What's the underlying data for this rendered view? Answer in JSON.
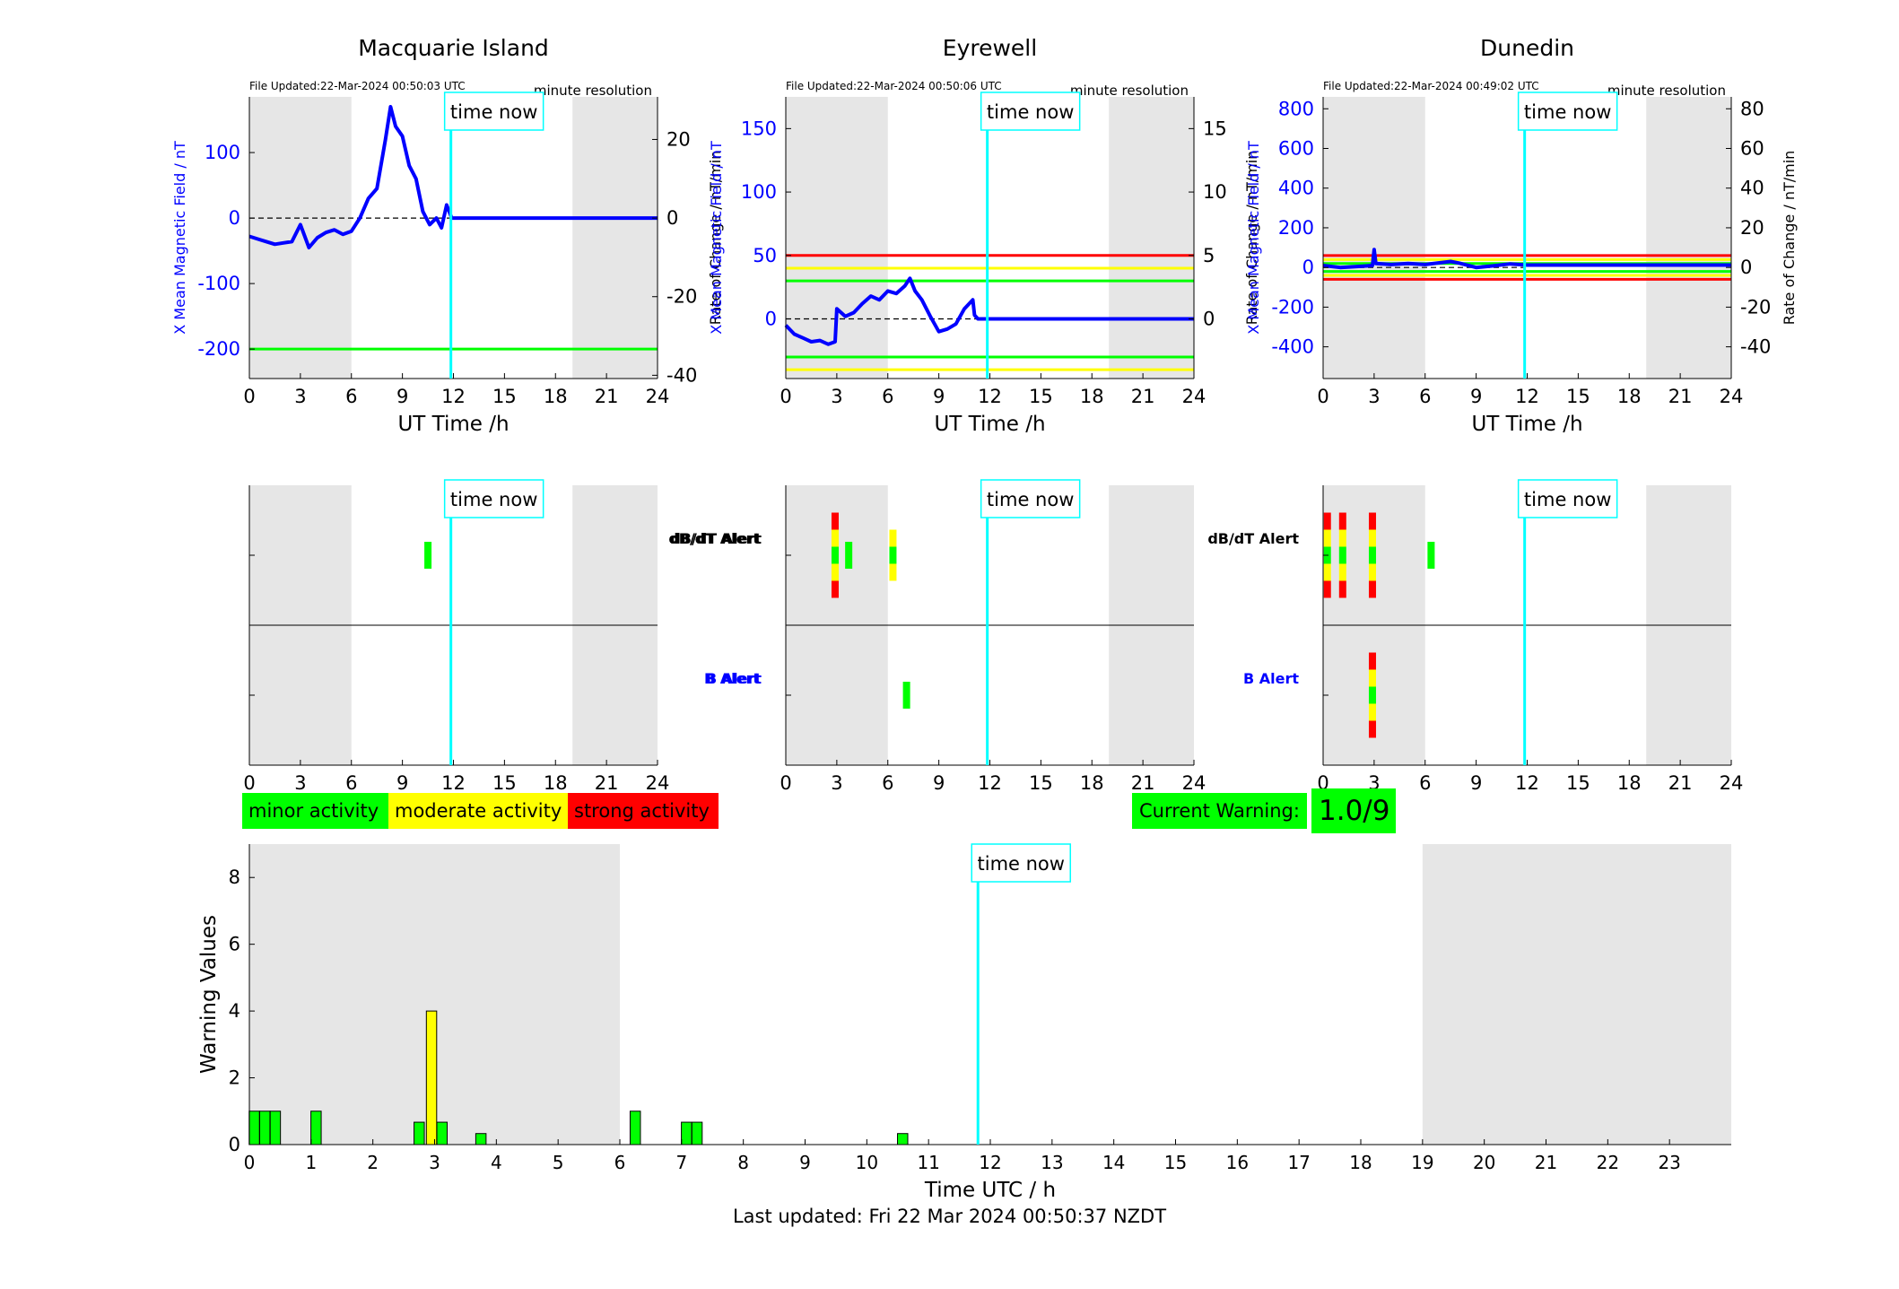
{
  "footer": {
    "last_updated": "Last updated: Fri 22 Mar 2024 00:50:37 NZDT"
  },
  "legend": {
    "minor": "minor activity",
    "moderate": "moderate activity",
    "strong": "strong activity"
  },
  "current_warning": {
    "label": "Current Warning:",
    "value": "1.0/9"
  },
  "colors": {
    "minor": "#00ff00",
    "moderate": "#ffff00",
    "strong": "#ff0000",
    "night": "#e6e6e6",
    "now": "#00ffff",
    "field": "#0000ff"
  },
  "labels": {
    "time_now": "time now",
    "resolution": "minute resolution",
    "xlabel": "UT Time /h",
    "dbdt_alert": "dB/dT Alert",
    "b_alert": "B Alert"
  },
  "chart_data": [
    {
      "type": "line",
      "title": "Macquarie Island",
      "file_updated": "File Updated:22-Mar-2024 00:50:03 UTC",
      "xlabel": "UT Time /h",
      "ylabel": "X Mean Magnetic Field / nT",
      "y2label": "Rate of Change / nT/min",
      "xlim": [
        0,
        24
      ],
      "ylim": [
        -245,
        185
      ],
      "y2lim": [
        -40.83,
        30.83
      ],
      "xticks": [
        0,
        3,
        6,
        9,
        12,
        15,
        18,
        21,
        24
      ],
      "yticks": [
        -200,
        -100,
        0,
        100
      ],
      "y2ticks": [
        -40,
        -20,
        0,
        20
      ],
      "night": [
        [
          0,
          6
        ],
        [
          19,
          24
        ]
      ],
      "time_now": 11.85,
      "thresholds": [
        {
          "value": -200,
          "color": "#00ff00"
        }
      ],
      "series": [
        {
          "x": [
            0,
            0.5,
            1,
            1.5,
            2,
            2.5,
            3,
            3.5,
            4,
            4.5,
            5,
            5.5,
            6,
            6.5,
            7,
            7.5,
            8,
            8.3,
            8.6,
            9,
            9.4,
            9.8,
            10.2,
            10.6,
            11,
            11.3,
            11.6,
            11.9,
            12,
            15,
            18,
            21,
            24
          ],
          "y": [
            -28,
            -32,
            -36,
            -40,
            -38,
            -36,
            -10,
            -45,
            -30,
            -22,
            -18,
            -25,
            -20,
            0,
            30,
            45,
            120,
            170,
            140,
            125,
            80,
            60,
            10,
            -10,
            0,
            -15,
            20,
            0,
            0,
            0,
            0,
            0,
            0
          ]
        }
      ],
      "rate_dashed": [
        {
          "x": [
            0,
            12
          ],
          "y": [
            0,
            0
          ]
        }
      ]
    },
    {
      "type": "line",
      "title": "Eyrewell",
      "file_updated": "File Updated:22-Mar-2024 00:50:06 UTC",
      "xlabel": "UT Time /h",
      "ylabel": "X Mean Magnetic Field / nT",
      "y2label": "Rate of Change / nT/min",
      "xlim": [
        0,
        24
      ],
      "ylim": [
        -47,
        175
      ],
      "y2lim": [
        -4.7,
        17.5
      ],
      "xticks": [
        0,
        3,
        6,
        9,
        12,
        15,
        18,
        21,
        24
      ],
      "yticks": [
        0,
        50,
        100,
        150
      ],
      "y2ticks": [
        0,
        5,
        10,
        15
      ],
      "night": [
        [
          0,
          6
        ],
        [
          19,
          24
        ]
      ],
      "time_now": 11.85,
      "thresholds": [
        {
          "value": 50,
          "color": "#ff0000"
        },
        {
          "value": 40,
          "color": "#ffff00"
        },
        {
          "value": 30,
          "color": "#00ff00"
        },
        {
          "value": -30,
          "color": "#00ff00"
        },
        {
          "value": -40,
          "color": "#ffff00"
        }
      ],
      "series": [
        {
          "x": [
            0,
            0.5,
            1,
            1.5,
            2,
            2.5,
            2.9,
            3,
            3.5,
            4,
            4.5,
            5,
            5.5,
            6,
            6.5,
            7,
            7.3,
            7.6,
            8,
            8.5,
            9,
            9.5,
            10,
            10.5,
            11,
            11.1,
            11.3,
            12,
            15,
            18,
            21,
            24
          ],
          "y": [
            -5,
            -12,
            -15,
            -18,
            -17,
            -20,
            -18,
            8,
            2,
            5,
            12,
            18,
            15,
            22,
            20,
            26,
            32,
            22,
            15,
            2,
            -10,
            -8,
            -4,
            8,
            15,
            3,
            0,
            0,
            0,
            0,
            0,
            0
          ]
        }
      ],
      "rate_dashed": [
        {
          "x": [
            0,
            12
          ],
          "y": [
            0,
            0
          ]
        }
      ]
    },
    {
      "type": "line",
      "title": "Dunedin",
      "file_updated": "File Updated:22-Mar-2024 00:49:02 UTC",
      "xlabel": "UT Time /h",
      "ylabel": "X Mean Magnetic Field / nT",
      "y2label": "Rate of Change / nT/min",
      "xlim": [
        0,
        24
      ],
      "ylim": [
        -560,
        860
      ],
      "y2lim": [
        -56,
        86
      ],
      "xticks": [
        0,
        3,
        6,
        9,
        12,
        15,
        18,
        21,
        24
      ],
      "yticks": [
        -400,
        -200,
        0,
        200,
        400,
        600,
        800
      ],
      "y2ticks": [
        -40,
        -20,
        0,
        20,
        40,
        60,
        80
      ],
      "night": [
        [
          0,
          6
        ],
        [
          19,
          24
        ]
      ],
      "time_now": 11.85,
      "thresholds": [
        {
          "value": 60,
          "color": "#ff0000"
        },
        {
          "value": 40,
          "color": "#ffff00"
        },
        {
          "value": 20,
          "color": "#00ff00"
        },
        {
          "value": -20,
          "color": "#00ff00"
        },
        {
          "value": -40,
          "color": "#ffff00"
        },
        {
          "value": -60,
          "color": "#ff0000"
        }
      ],
      "series": [
        {
          "x": [
            0,
            1,
            2,
            2.9,
            3,
            3.1,
            4,
            5,
            6,
            7,
            7.5,
            8,
            9,
            10,
            11,
            12,
            15,
            18,
            21,
            24
          ],
          "y": [
            10,
            0,
            5,
            10,
            90,
            20,
            15,
            20,
            15,
            25,
            30,
            22,
            0,
            8,
            18,
            12,
            12,
            12,
            12,
            12
          ]
        }
      ],
      "rate_dashed": [
        {
          "x": [
            0,
            12
          ],
          "y": [
            0,
            0
          ]
        }
      ]
    },
    {
      "type": "bar",
      "xlabel": "Time UTC / h",
      "ylabel": "Warning Values",
      "xlim": [
        0,
        24
      ],
      "ylim": [
        0,
        9
      ],
      "xticks": [
        0,
        1,
        2,
        3,
        4,
        5,
        6,
        7,
        8,
        9,
        10,
        11,
        12,
        13,
        14,
        15,
        16,
        17,
        18,
        19,
        20,
        21,
        22,
        23
      ],
      "yticks": [
        0,
        2,
        4,
        6,
        8
      ],
      "night": [
        [
          0,
          6
        ],
        [
          19,
          24
        ]
      ],
      "time_now": 11.8,
      "bars": [
        {
          "x": 0.08,
          "value": 1.0,
          "level": "minor"
        },
        {
          "x": 0.25,
          "value": 1.0,
          "level": "minor"
        },
        {
          "x": 0.42,
          "value": 1.0,
          "level": "minor"
        },
        {
          "x": 1.08,
          "value": 1.0,
          "level": "minor"
        },
        {
          "x": 2.75,
          "value": 0.67,
          "level": "minor"
        },
        {
          "x": 2.95,
          "value": 4.0,
          "level": "moderate"
        },
        {
          "x": 3.12,
          "value": 0.67,
          "level": "minor"
        },
        {
          "x": 3.75,
          "value": 0.33,
          "level": "minor"
        },
        {
          "x": 6.25,
          "value": 1.0,
          "level": "minor"
        },
        {
          "x": 7.08,
          "value": 0.67,
          "level": "minor"
        },
        {
          "x": 7.25,
          "value": 0.67,
          "level": "minor"
        },
        {
          "x": 10.58,
          "value": 0.33,
          "level": "minor"
        }
      ]
    }
  ],
  "alerts": [
    {
      "station": "Macquarie Island",
      "dbdt": [
        {
          "x": 10.5,
          "levels": [
            "minor"
          ]
        }
      ],
      "b": []
    },
    {
      "station": "Eyrewell",
      "dbdt": [
        {
          "x": 2.9,
          "levels": [
            "strong",
            "moderate",
            "minor",
            "moderate",
            "strong"
          ]
        },
        {
          "x": 3.7,
          "levels": [
            "minor"
          ]
        },
        {
          "x": 6.3,
          "levels": [
            "moderate",
            "minor",
            "moderate"
          ]
        }
      ],
      "b": [
        {
          "x": 7.1,
          "levels": [
            "minor"
          ]
        }
      ]
    },
    {
      "station": "Dunedin",
      "dbdt": [
        {
          "x": 0.25,
          "levels": [
            "strong",
            "moderate",
            "minor",
            "moderate",
            "strong"
          ]
        },
        {
          "x": 1.15,
          "levels": [
            "strong",
            "moderate",
            "minor",
            "moderate",
            "strong"
          ]
        },
        {
          "x": 2.9,
          "levels": [
            "strong",
            "moderate",
            "minor",
            "moderate",
            "strong"
          ]
        },
        {
          "x": 6.35,
          "levels": [
            "minor"
          ]
        }
      ],
      "b": [
        {
          "x": 2.9,
          "levels": [
            "strong",
            "moderate",
            "minor",
            "moderate",
            "strong"
          ]
        }
      ]
    }
  ]
}
